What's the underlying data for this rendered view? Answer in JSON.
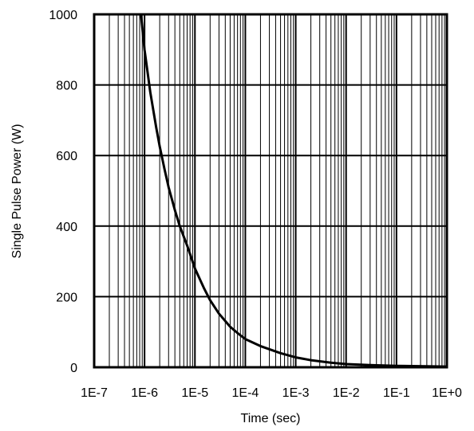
{
  "chart_data": {
    "type": "line",
    "title": "",
    "xlabel": "Time (sec)",
    "ylabel": "Single Pulse Power (W)",
    "x_scale": "log",
    "xlim": [
      1e-07,
      1
    ],
    "ylim": [
      0,
      1000
    ],
    "grid": true,
    "x_tick_values": [
      1e-07,
      1e-06,
      1e-05,
      0.0001,
      0.001,
      0.01,
      0.1,
      1
    ],
    "x_tick_labels": [
      "1E-7",
      "1E-6",
      "1E-5",
      "1E-4",
      "1E-3",
      "1E-2",
      "1E-1",
      "1E+0"
    ],
    "y_ticks": [
      0,
      200,
      400,
      600,
      800,
      1000
    ],
    "series": [
      {
        "color": "#000000",
        "points": [
          {
            "x": 8.5e-07,
            "y": 1000
          },
          {
            "x": 1e-06,
            "y": 900
          },
          {
            "x": 1.3e-06,
            "y": 780
          },
          {
            "x": 1.7e-06,
            "y": 680
          },
          {
            "x": 2e-06,
            "y": 625
          },
          {
            "x": 2.5e-06,
            "y": 560
          },
          {
            "x": 3e-06,
            "y": 510
          },
          {
            "x": 4e-06,
            "y": 445
          },
          {
            "x": 5e-06,
            "y": 400
          },
          {
            "x": 7e-06,
            "y": 345
          },
          {
            "x": 1e-05,
            "y": 280
          },
          {
            "x": 1.5e-05,
            "y": 225
          },
          {
            "x": 2e-05,
            "y": 190
          },
          {
            "x": 3e-05,
            "y": 152
          },
          {
            "x": 5e-05,
            "y": 115
          },
          {
            "x": 7e-05,
            "y": 97
          },
          {
            "x": 0.0001,
            "y": 80
          },
          {
            "x": 0.0002,
            "y": 60
          },
          {
            "x": 0.0005,
            "y": 40
          },
          {
            "x": 0.001,
            "y": 28
          },
          {
            "x": 0.002,
            "y": 20
          },
          {
            "x": 0.005,
            "y": 13
          },
          {
            "x": 0.01,
            "y": 9
          },
          {
            "x": 0.03,
            "y": 6
          },
          {
            "x": 0.1,
            "y": 4
          },
          {
            "x": 1,
            "y": 2
          }
        ]
      }
    ]
  }
}
